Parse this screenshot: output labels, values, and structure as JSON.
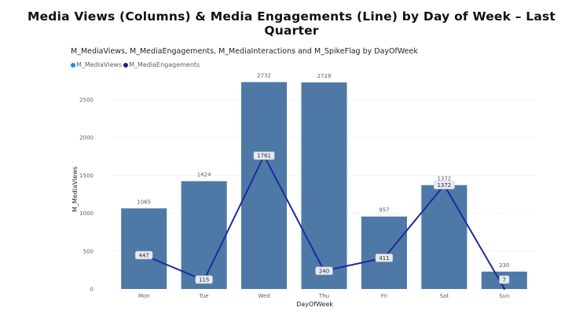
{
  "title": "Media Views (Columns) & Media Engagements (Line) by Day of Week – Last Quarter",
  "visual_title": "M_MediaViews, M_MediaEngagements, M_MediaInteractions and M_SpikeFlag by DayOfWeek",
  "legend": [
    {
      "label": "M_MediaViews",
      "color": "#118dff"
    },
    {
      "label": "M_MediaEngagements",
      "color": "#12239e"
    }
  ],
  "colors": {
    "bar": "#4e79a7",
    "line": "#1f2a9c",
    "grid": "#e1dfdd",
    "label_box": "#e6eaf2"
  },
  "chart_data": {
    "type": "bar",
    "categories": [
      "Mon",
      "Tue",
      "Wed",
      "Thu",
      "Fri",
      "Sat",
      "Sun"
    ],
    "series": [
      {
        "name": "M_MediaViews",
        "type": "bar",
        "values": [
          1065,
          1424,
          2732,
          2728,
          957,
          1372,
          230
        ]
      },
      {
        "name": "M_MediaEngagements",
        "type": "line",
        "values": [
          447,
          115,
          1761,
          240,
          411,
          1372,
          7
        ]
      }
    ],
    "xlabel": "DayOfWeek",
    "ylabel": "M_MediaViews",
    "ylim": [
      0,
      2800
    ],
    "yticks": [
      0,
      500,
      1000,
      1500,
      2000,
      2500
    ],
    "grid": true,
    "legend_position": "top-left"
  }
}
